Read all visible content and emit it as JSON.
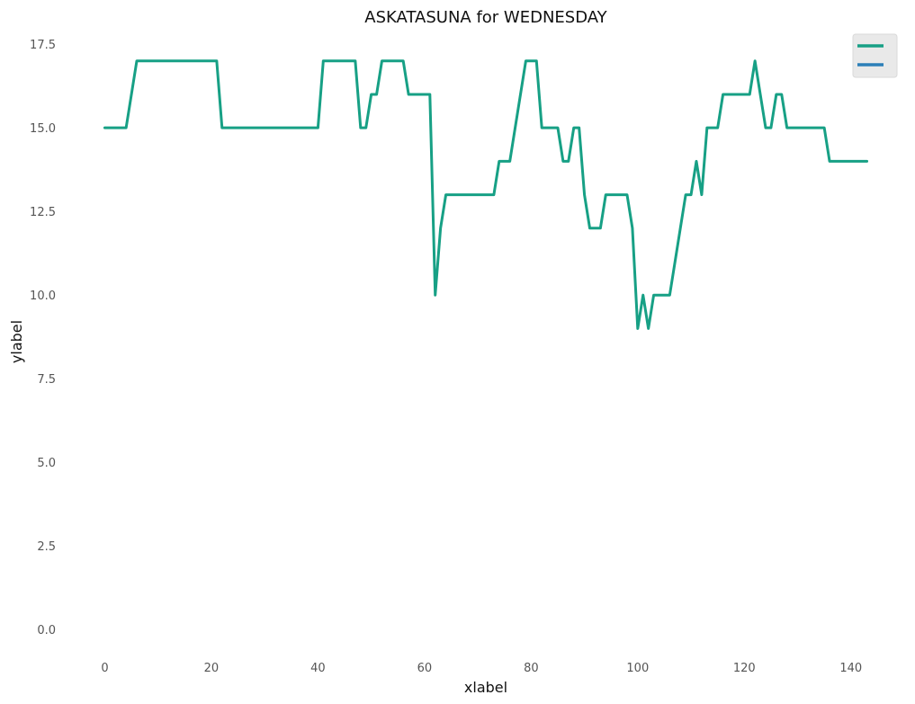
{
  "chart_data": {
    "type": "line",
    "title": "ASKATASUNA for WEDNESDAY",
    "xlabel": "xlabel",
    "ylabel": "ylabel",
    "xlim": [
      -7,
      150
    ],
    "ylim": [
      -0.8,
      17.8
    ],
    "x_ticks": [
      0,
      20,
      40,
      60,
      80,
      100,
      120,
      140
    ],
    "x_tick_labels": [
      "0",
      "20",
      "40",
      "60",
      "80",
      "100",
      "120",
      "140"
    ],
    "y_ticks": [
      0,
      2.5,
      5,
      7.5,
      10,
      12.5,
      15,
      17.5
    ],
    "y_tick_labels": [
      "0.0",
      "2.5",
      "5.0",
      "7.5",
      "10.0",
      "12.5",
      "15.0",
      "17.5"
    ],
    "grid": false,
    "legend": {
      "position": "top-right",
      "entries": [
        "",
        ""
      ]
    },
    "series": [
      {
        "color": "#17a085",
        "x": [
          0,
          1,
          2,
          3,
          4,
          5,
          6,
          7,
          8,
          9,
          10,
          11,
          12,
          13,
          14,
          15,
          16,
          17,
          18,
          19,
          20,
          21,
          22,
          23,
          24,
          25,
          26,
          27,
          28,
          29,
          30,
          31,
          32,
          33,
          34,
          35,
          36,
          37,
          38,
          39,
          40,
          41,
          42,
          43,
          44,
          45,
          46,
          47,
          48,
          49,
          50,
          51,
          52,
          53,
          54,
          55,
          56,
          57,
          58,
          59,
          60,
          61,
          62,
          63,
          64,
          65,
          66,
          67,
          68,
          69,
          70,
          71,
          72,
          73,
          74,
          75,
          76,
          77,
          78,
          79,
          80,
          81,
          82,
          83,
          84,
          85,
          86,
          87,
          88,
          89,
          90,
          91,
          92,
          93,
          94,
          95,
          96,
          97,
          98,
          99,
          100,
          101,
          102,
          103,
          104,
          105,
          106,
          107,
          108,
          109,
          110,
          111,
          112,
          113,
          114,
          115,
          116,
          117,
          118,
          119,
          120,
          121,
          122,
          123,
          124,
          125,
          126,
          127,
          128,
          129,
          130,
          131,
          132,
          133,
          134,
          135,
          136,
          137,
          138,
          139,
          140,
          141,
          142,
          143
        ],
        "y": [
          15,
          15,
          15,
          15,
          15,
          16,
          17,
          17,
          17,
          17,
          17,
          17,
          17,
          17,
          17,
          17,
          17,
          17,
          17,
          17,
          17,
          17,
          15,
          15,
          15,
          15,
          15,
          15,
          15,
          15,
          15,
          15,
          15,
          15,
          15,
          15,
          15,
          15,
          15,
          15,
          15,
          17,
          17,
          17,
          17,
          17,
          17,
          17,
          15,
          15,
          16,
          16,
          17,
          17,
          17,
          17,
          17,
          16,
          16,
          16,
          16,
          16,
          10,
          12,
          13,
          13,
          13,
          13,
          13,
          13,
          13,
          13,
          13,
          13,
          14,
          14,
          14,
          15,
          16,
          17,
          17,
          17,
          15,
          15,
          15,
          15,
          14,
          14,
          15,
          15,
          13,
          12,
          12,
          12,
          13,
          13,
          13,
          13,
          13,
          12,
          9,
          10,
          9,
          10,
          10,
          10,
          10,
          11,
          12,
          13,
          13,
          14,
          13,
          15,
          15,
          15,
          16,
          16,
          16,
          16,
          16,
          16,
          17,
          16,
          15,
          15,
          16,
          16,
          15,
          15,
          15,
          15,
          15,
          15,
          15,
          15,
          14,
          14,
          14,
          14,
          14,
          14,
          14,
          14
        ]
      },
      {
        "color": "#2c7fb8",
        "x": [],
        "y": []
      }
    ]
  }
}
